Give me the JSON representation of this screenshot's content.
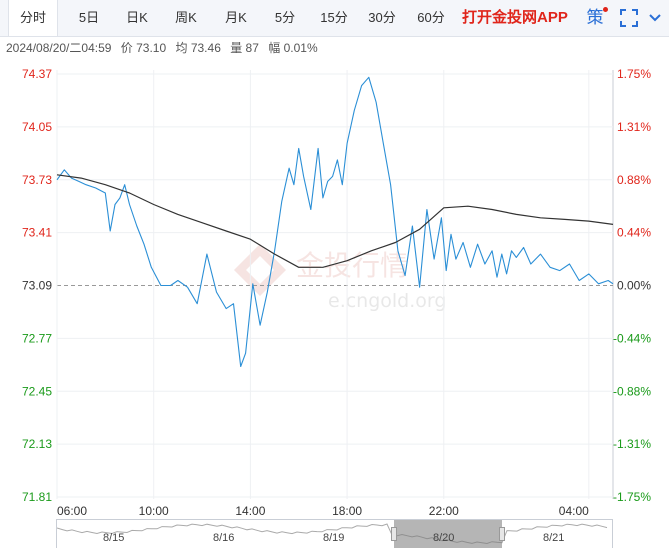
{
  "tabs": [
    {
      "label": "分时",
      "active": true
    },
    {
      "label": "5日",
      "active": false
    },
    {
      "label": "日K",
      "active": false
    },
    {
      "label": "周K",
      "active": false
    },
    {
      "label": "月K",
      "active": false
    },
    {
      "label": "5分",
      "active": false
    },
    {
      "label": "15分",
      "active": false
    },
    {
      "label": "30分",
      "active": false
    },
    {
      "label": "60分",
      "active": false
    }
  ],
  "app_link": "打开金投网APP",
  "toolbar_icons": [
    "strategy-icon",
    "fullscreen-icon"
  ],
  "strategy_label": "策",
  "info": {
    "datetime": "2024/08/20/二04:59",
    "price": "价 73.10",
    "avg": "均 73.46",
    "volume": "量 87",
    "change": "幅 0.01%"
  },
  "watermark": {
    "brand": "金投行情",
    "url": "e.cngold.org"
  },
  "colors": {
    "price_line": "#2b8fd6",
    "avg_line": "#333333",
    "up": "#e0251b",
    "down": "#1a9a1a",
    "neutral": "#333333"
  },
  "chart_data": {
    "type": "line",
    "prev_close": 73.09,
    "ylim": [
      71.81,
      74.37
    ],
    "y_ticks": [
      74.37,
      74.05,
      73.73,
      73.41,
      73.09,
      72.77,
      72.45,
      72.13,
      71.81
    ],
    "y_tick_labels": [
      "74.37",
      "74.05",
      "73.73",
      "73.41",
      "73.09",
      "72.77",
      "72.45",
      "72.13",
      "71.81"
    ],
    "pct_labels": [
      "1.75%",
      "1.31%",
      "0.88%",
      "0.44%",
      "0.00%",
      "-0.44%",
      "-0.88%",
      "-1.31%",
      "-1.75%"
    ],
    "x_labels": [
      "06:00",
      "10:00",
      "14:00",
      "18:00",
      "22:00",
      "04:00"
    ],
    "x_range_hours": [
      0,
      23
    ],
    "series": [
      {
        "key": "price",
        "x": [
          0,
          0.3,
          0.6,
          0.9,
          1.2,
          1.6,
          2.0,
          2.2,
          2.4,
          2.6,
          2.8,
          3.0,
          3.3,
          3.6,
          3.9,
          4.3,
          4.7,
          5.0,
          5.4,
          5.8,
          6.2,
          6.6,
          7.0,
          7.3,
          7.6,
          7.8,
          8.1,
          8.4,
          8.7,
          9.0,
          9.3,
          9.6,
          9.8,
          10.0,
          10.2,
          10.5,
          10.8,
          11.0,
          11.2,
          11.4,
          11.6,
          11.8,
          12.0,
          12.3,
          12.6,
          12.9,
          13.2,
          13.5,
          13.8,
          14.1,
          14.4,
          14.7,
          15.0,
          15.3,
          15.6,
          15.9,
          16.1,
          16.3,
          16.5,
          16.8,
          17.1,
          17.4,
          17.7,
          18.0,
          18.2,
          18.4,
          18.6,
          18.8,
          19.0,
          19.3,
          19.6,
          20.0,
          20.4,
          20.8,
          21.2,
          21.6,
          22.0,
          22.4,
          22.8,
          23.0
        ],
        "y": [
          73.73,
          73.79,
          73.74,
          73.72,
          73.7,
          73.68,
          73.65,
          73.42,
          73.58,
          73.62,
          73.7,
          73.58,
          73.45,
          73.34,
          73.2,
          73.09,
          73.09,
          73.12,
          73.08,
          72.98,
          73.28,
          73.05,
          72.95,
          72.98,
          72.6,
          72.68,
          73.1,
          72.85,
          73.05,
          73.3,
          73.6,
          73.8,
          73.7,
          73.92,
          73.75,
          73.55,
          73.92,
          73.62,
          73.72,
          73.75,
          73.85,
          73.7,
          73.95,
          74.15,
          74.3,
          74.35,
          74.2,
          73.95,
          73.7,
          73.3,
          73.15,
          73.45,
          73.08,
          73.55,
          73.25,
          73.5,
          73.18,
          73.4,
          73.25,
          73.35,
          73.2,
          73.34,
          73.22,
          73.3,
          73.14,
          73.28,
          73.16,
          73.3,
          73.26,
          73.32,
          73.22,
          73.28,
          73.2,
          73.18,
          73.22,
          73.12,
          73.16,
          73.1,
          73.12,
          73.1
        ]
      },
      {
        "key": "average",
        "x": [
          0,
          1,
          2,
          3,
          4,
          5,
          6,
          7,
          8,
          9,
          10,
          11,
          12,
          13,
          14,
          15,
          16,
          17,
          18,
          19,
          20,
          21,
          22,
          23
        ],
        "y": [
          73.76,
          73.74,
          73.7,
          73.65,
          73.58,
          73.52,
          73.47,
          73.42,
          73.37,
          73.28,
          73.2,
          73.2,
          73.24,
          73.3,
          73.35,
          73.43,
          73.56,
          73.57,
          73.55,
          73.52,
          73.5,
          73.49,
          73.48,
          73.46
        ]
      }
    ]
  },
  "navigator": {
    "labels": [
      "8/15",
      "8/16",
      "8/19",
      "8/20",
      "8/21"
    ],
    "selected": "8/20"
  }
}
